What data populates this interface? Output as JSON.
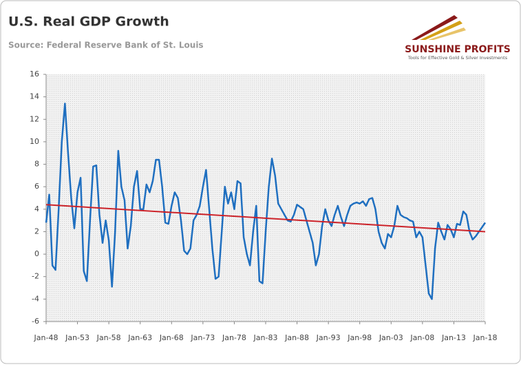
{
  "chart_data": {
    "type": "line",
    "title": "U.S. Real GDP Growth",
    "subtitle": "Source: Federal Reserve Bank of St. Louis",
    "logo": {
      "name": "SUNSHINE PROFITS",
      "tagline": "Tools for Effective Gold & Silver Investments"
    },
    "categories": [
      "Jan-48",
      null,
      null,
      null,
      null,
      null,
      null,
      null,
      null,
      null,
      "Jan-53",
      null,
      null,
      null,
      null,
      null,
      null,
      null,
      null,
      null,
      "Jan-58",
      null,
      null,
      null,
      null,
      null,
      null,
      null,
      null,
      null,
      "Jan-63",
      null,
      null,
      null,
      null,
      null,
      null,
      null,
      null,
      null,
      "Jan-68",
      null,
      null,
      null,
      null,
      null,
      null,
      null,
      null,
      null,
      "Jan-73",
      null,
      null,
      null,
      null,
      null,
      null,
      null,
      null,
      null,
      "Jan-78",
      null,
      null,
      null,
      null,
      null,
      null,
      null,
      null,
      null,
      "Jan-83",
      null,
      null,
      null,
      null,
      null,
      null,
      null,
      null,
      null,
      "Jan-88",
      null,
      null,
      null,
      null,
      null,
      null,
      null,
      null,
      null,
      "Jan-93",
      null,
      null,
      null,
      null,
      null,
      null,
      null,
      null,
      null,
      "Jan-98",
      null,
      null,
      null,
      null,
      null,
      null,
      null,
      null,
      null,
      "Jan-03",
      null,
      null,
      null,
      null,
      null,
      null,
      null,
      null,
      null,
      "Jan-08",
      null,
      null,
      null,
      null,
      null,
      null,
      null,
      null,
      null,
      "Jan-13",
      null,
      null,
      null,
      null,
      null,
      null,
      null,
      null,
      null,
      "Jan-18"
    ],
    "series": [
      {
        "color": "#1f6fc0",
        "values": [
          2.8,
          5.3,
          -1.0,
          -1.4,
          4.0,
          10.0,
          13.4,
          9.0,
          5.0,
          2.3,
          5.5,
          6.8,
          -1.5,
          -2.4,
          3.0,
          7.8,
          7.9,
          3.5,
          1.0,
          3.0,
          1.2,
          -2.9,
          2.0,
          9.2,
          6.0,
          4.8,
          0.5,
          2.5,
          6.0,
          7.4,
          4.0,
          4.0,
          6.2,
          5.5,
          6.5,
          8.4,
          8.4,
          6.0,
          2.8,
          2.7,
          4.3,
          5.5,
          5.0,
          3.0,
          0.3,
          0.0,
          0.5,
          3.0,
          3.5,
          4.3,
          6.0,
          7.5,
          4.0,
          0.5,
          -2.2,
          -2.0,
          2.0,
          6.0,
          4.5,
          5.5,
          4.0,
          6.5,
          6.3,
          1.5,
          0.0,
          -1.0,
          2.0,
          4.3,
          -2.4,
          -2.6,
          2.0,
          6.0,
          8.5,
          7.0,
          4.5,
          4.0,
          3.5,
          3.0,
          2.9,
          3.5,
          4.4,
          4.2,
          4.0,
          3.0,
          2.0,
          1.0,
          -1.0,
          0.0,
          2.5,
          4.0,
          3.0,
          2.5,
          3.5,
          4.3,
          3.3,
          2.5,
          3.5,
          4.3,
          4.5,
          4.6,
          4.5,
          4.7,
          4.3,
          4.9,
          5.0,
          4.0,
          2.0,
          1.0,
          0.5,
          1.8,
          1.5,
          2.5,
          4.3,
          3.5,
          3.3,
          3.2,
          3.0,
          2.9,
          1.5,
          2.0,
          1.5,
          -1.0,
          -3.5,
          -4.0,
          0.5,
          2.8,
          2.0,
          1.3,
          2.6,
          2.2,
          1.5,
          2.7,
          2.6,
          3.8,
          3.5,
          2.0,
          1.3,
          1.6,
          2.0,
          2.4,
          2.8
        ]
      }
    ],
    "trend": {
      "color": "#cc2229",
      "start": 4.4,
      "end": 2.0
    },
    "ylim": [
      -6,
      16
    ],
    "yticks": [
      -6,
      -4,
      -2,
      0,
      2,
      4,
      6,
      8,
      10,
      12,
      14,
      16
    ]
  }
}
